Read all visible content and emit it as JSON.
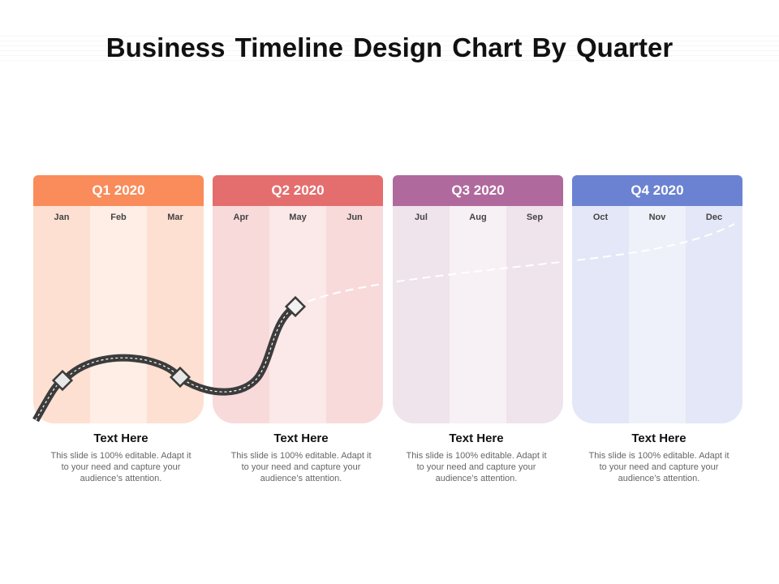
{
  "title": "Business Timeline Design Chart By Quarter",
  "quarters": [
    {
      "label": "Q1 2020",
      "header_color": "#F98C5A",
      "col_colors": [
        "#FDE0D2",
        "#FEEEE6",
        "#FDE0D2"
      ],
      "months": [
        "Jan",
        "Feb",
        "Mar"
      ],
      "caption_title": "Text Here",
      "caption_text": "This slide is 100% editable. Adapt it to your need and capture your audience’s attention."
    },
    {
      "label": "Q2 2020",
      "header_color": "#E46E6E",
      "col_colors": [
        "#F8DADB",
        "#FBE8E8",
        "#F8DADB"
      ],
      "months": [
        "Apr",
        "May",
        "Jun"
      ],
      "caption_title": "Text Here",
      "caption_text": "This slide is 100% editable. Adapt it to your need and capture your audience’s attention."
    },
    {
      "label": "Q3 2020",
      "header_color": "#B0699D",
      "col_colors": [
        "#EFE3EC",
        "#F7F0F5",
        "#EFE3EC"
      ],
      "months": [
        "Jul",
        "Aug",
        "Sep"
      ],
      "caption_title": "Text Here",
      "caption_text": "This slide is 100% editable. Adapt it to your need and capture your audience’s attention."
    },
    {
      "label": "Q4 2020",
      "header_color": "#6B82D2",
      "col_colors": [
        "#E3E7F7",
        "#EEF1FA",
        "#E3E7F7"
      ],
      "months": [
        "Oct",
        "Nov",
        "Dec"
      ],
      "caption_title": "Text Here",
      "caption_text": "This slide is 100% editable. Adapt it to your need and capture your audience’s attention."
    }
  ],
  "road_color": "#3C3C3C",
  "future_path_color": "#FFFFFF"
}
